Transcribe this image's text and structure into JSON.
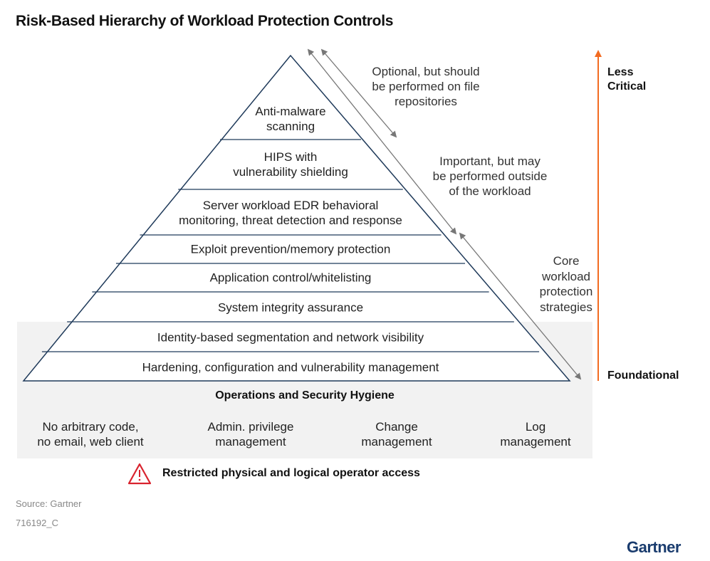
{
  "title": "Risk-Based Hierarchy of Workload Protection Controls",
  "layers": [
    {
      "line1": "Anti-malware",
      "line2": "scanning"
    },
    {
      "line1": "HIPS with",
      "line2": "vulnerability shielding"
    },
    {
      "line1": "Server workload EDR behavioral",
      "line2": "monitoring, threat detection and response"
    },
    {
      "line1": "Exploit prevention/memory protection"
    },
    {
      "line1": "Application control/whitelisting"
    },
    {
      "line1": "System integrity assurance"
    },
    {
      "line1": "Identity-based segmentation and network visibility"
    },
    {
      "line1": "Hardening, configuration and vulnerability management"
    }
  ],
  "annotations": {
    "optional": [
      "Optional, but should",
      "be performed on file",
      "repositories"
    ],
    "important": [
      "Important, but may",
      "be performed outside",
      "of the workload"
    ],
    "core": [
      "Core",
      "workload",
      "protection",
      "strategies"
    ]
  },
  "criticality": {
    "top": [
      "Less",
      "Critical"
    ],
    "bottom": "Foundational",
    "arrow_color": "#f26b21"
  },
  "hygiene": {
    "heading": "Operations and Security Hygiene",
    "items": [
      [
        "No arbitrary code,",
        "no email, web client"
      ],
      [
        "Admin. privilege",
        "management"
      ],
      [
        "Change",
        "management"
      ],
      [
        "Log",
        "management"
      ]
    ]
  },
  "warning": {
    "icon": "warning-triangle-icon",
    "text": "Restricted physical and logical operator access",
    "color": "#d9232e"
  },
  "source": "Source: Gartner",
  "figure_id": "716192_C",
  "logo": "Gartner",
  "colors": {
    "pyramid_line": "#1f3a5a",
    "hygiene_bg": "#f2f2f2",
    "logo": "#1a3c6e"
  }
}
